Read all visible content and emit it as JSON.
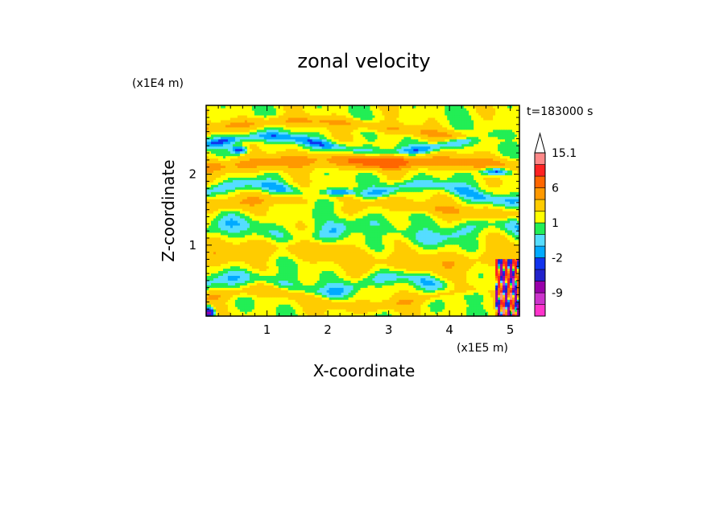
{
  "chart_data": {
    "type": "heatmap",
    "title": "zonal velocity",
    "xlabel": "X-coordinate",
    "ylabel": "Z-coordinate",
    "x_unit": "(x1E5 m)",
    "y_unit": "(x1E4 m)",
    "time_label": "t=183000 s",
    "xlim": [
      0,
      5.15
    ],
    "ylim": [
      0,
      2.97
    ],
    "x_ticks": [
      "1",
      "2",
      "3",
      "4",
      "5"
    ],
    "y_ticks": [
      "1",
      "2"
    ],
    "x_tick_values": [
      1,
      2,
      3,
      4,
      5
    ],
    "y_tick_values": [
      1,
      2
    ],
    "colorbar": {
      "levels": [
        -15,
        -12,
        -9,
        -6,
        -4,
        -2,
        -1,
        0,
        1,
        2,
        4,
        6,
        9,
        12,
        15.1
      ],
      "labels": [
        "15.1",
        "6",
        "1",
        "-2",
        "-9"
      ],
      "label_values": [
        15.1,
        6,
        1,
        -2,
        -9
      ],
      "colors": [
        "#ff33cc",
        "#cc33cc",
        "#9900aa",
        "#2222cc",
        "#1133ee",
        "#00aaff",
        "#55ddff",
        "#22ee55",
        "#ffff00",
        "#ffcc00",
        "#ff9900",
        "#ff6600",
        "#ff2222",
        "#ff8888",
        "#ffbbbb"
      ],
      "overflow_triangle": true
    },
    "notes": "Field estimated visually; bands of positive (yellow/orange) and near-zero/negative (green/cyan/blue) zonal velocity."
  }
}
